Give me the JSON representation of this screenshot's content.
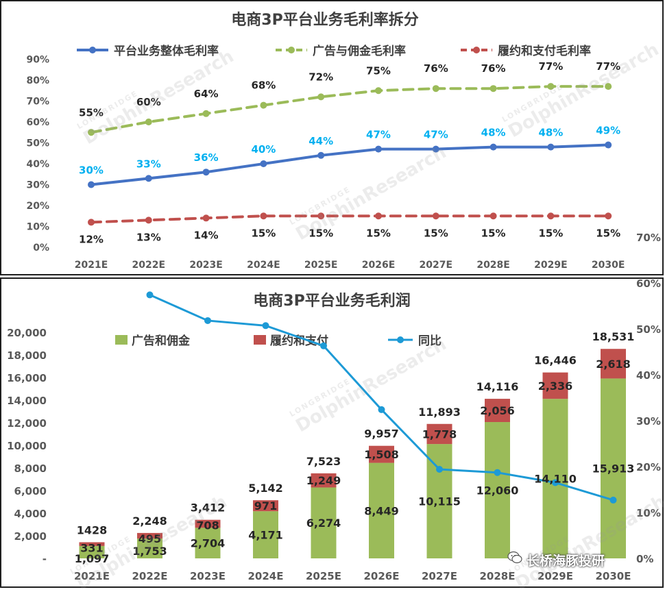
{
  "chart_data": [
    {
      "type": "line",
      "title": "电商3P平台业务毛利率拆分",
      "categories": [
        "2021E",
        "2022E",
        "2023E",
        "2024E",
        "2025E",
        "2026E",
        "2027E",
        "2028E",
        "2029E",
        "2030E"
      ],
      "y_ticks": [
        "0%",
        "10%",
        "20%",
        "30%",
        "40%",
        "50%",
        "60%",
        "70%",
        "80%",
        "90%"
      ],
      "ylim": [
        0,
        90
      ],
      "legend_position": "top",
      "grid": false,
      "series": [
        {
          "name": "平台业务整体毛利率",
          "style": "solid",
          "color": "#4472C4",
          "label_color": "#00B0F0",
          "values": [
            30,
            33,
            36,
            40,
            44,
            47,
            47,
            48,
            48,
            49
          ],
          "labels": [
            "30%",
            "33%",
            "36%",
            "40%",
            "44%",
            "47%",
            "47%",
            "48%",
            "48%",
            "49%"
          ]
        },
        {
          "name": "广告与佣金毛利率",
          "style": "dashed",
          "color": "#9BBB59",
          "label_color": "#262626",
          "values": [
            55,
            60,
            64,
            68,
            72,
            75,
            76,
            76,
            77,
            77
          ],
          "labels": [
            "55%",
            "60%",
            "64%",
            "68%",
            "72%",
            "75%",
            "76%",
            "76%",
            "77%",
            "77%"
          ]
        },
        {
          "name": "履约和支付毛利率",
          "style": "dashed",
          "color": "#C0504D",
          "label_color": "#262626",
          "values": [
            12,
            13,
            14,
            15,
            15,
            15,
            15,
            15,
            15,
            15
          ],
          "labels": [
            "12%",
            "13%",
            "14%",
            "15%",
            "15%",
            "15%",
            "15%",
            "15%",
            "15%",
            "15%"
          ]
        }
      ]
    },
    {
      "type": "bar",
      "stacked": true,
      "title": "电商3P平台业务毛利润",
      "categories": [
        "2021E",
        "2022E",
        "2023E",
        "2024E",
        "2025E",
        "2026E",
        "2027E",
        "2028E",
        "2029E",
        "2030E"
      ],
      "y_ticks": [
        "-",
        "2,000",
        "4,000",
        "6,000",
        "8,000",
        "10,000",
        "12,000",
        "14,000",
        "16,000",
        "18,000",
        "20,000"
      ],
      "ylim": [
        0,
        20000
      ],
      "y2_ticks": [
        "0%",
        "10%",
        "20%",
        "30%",
        "40%",
        "50%",
        "60%",
        "70%"
      ],
      "y2lim": [
        0,
        70
      ],
      "legend_position": "top",
      "grid": false,
      "series": [
        {
          "name": "广告和佣金",
          "color": "#9BBB59",
          "values": [
            1097,
            1753,
            2704,
            4171,
            6274,
            8449,
            10115,
            12060,
            14110,
            15913
          ],
          "labels": [
            "1,097",
            "1,753",
            "2,704",
            "4,171",
            "6,274",
            "8,449",
            "10,115",
            "12,060",
            "14,110",
            "15,913"
          ]
        },
        {
          "name": "履约和支付",
          "color": "#C0504D",
          "values": [
            331,
            495,
            708,
            971,
            1249,
            1508,
            1778,
            2056,
            2336,
            2618
          ],
          "labels": [
            "331",
            "495",
            "708",
            "971",
            "1,249",
            "1,508",
            "1,778",
            "2,056",
            "2,336",
            "2,618"
          ]
        }
      ],
      "totals": [
        1428,
        2248,
        3412,
        5142,
        7523,
        9957,
        11893,
        14116,
        16446,
        18531
      ],
      "total_labels": [
        "1428",
        "2,248",
        "3,412",
        "5,142",
        "7,523",
        "9,957",
        "11,893",
        "14,116",
        "16,446",
        "18,531"
      ],
      "yoy": {
        "name": "同比",
        "color": "#1D9AD6",
        "axis": "right",
        "values": [
          null,
          57.4,
          51.8,
          50.7,
          46.3,
          32.4,
          19.4,
          18.7,
          16.5,
          12.7
        ]
      }
    }
  ],
  "watermark": {
    "brand": "DolphinResearch",
    "sub": "LONGBRIDGE"
  },
  "footer": {
    "brand_text": "长桥海豚投研"
  },
  "colors": {
    "axis_text": "#595959",
    "title_text": "#404040",
    "label_text": "#262626"
  }
}
